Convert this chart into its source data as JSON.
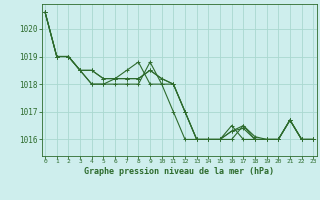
{
  "title": "Graphe pression niveau de la mer (hPa)",
  "background_color": "#ceeeed",
  "grid_color": "#aad8d0",
  "line_color": "#2d6b2d",
  "x_ticks": [
    0,
    1,
    2,
    3,
    4,
    5,
    6,
    7,
    8,
    9,
    10,
    11,
    12,
    13,
    14,
    15,
    16,
    17,
    18,
    19,
    20,
    21,
    22,
    23
  ],
  "y_ticks": [
    1016,
    1017,
    1018,
    1019,
    1020
  ],
  "ylim": [
    1015.4,
    1020.9
  ],
  "xlim": [
    -0.3,
    23.3
  ],
  "curves": [
    {
      "x": [
        0,
        1,
        2,
        3,
        4,
        5,
        6,
        7,
        8,
        9,
        10,
        11,
        12,
        13,
        14,
        15,
        16,
        17,
        18,
        19,
        20,
        21,
        22,
        23
      ],
      "y": [
        1020.6,
        1019.0,
        1019.0,
        1018.5,
        1018.0,
        1018.0,
        1018.0,
        1018.0,
        1018.0,
        1018.8,
        1018.0,
        1018.0,
        1017.0,
        1016.0,
        1016.0,
        1016.0,
        1016.5,
        1016.0,
        1016.0,
        1016.0,
        1016.0,
        1016.7,
        1016.0,
        1016.0
      ]
    },
    {
      "x": [
        0,
        1,
        2,
        3,
        4,
        5,
        6,
        7,
        8,
        9,
        10,
        11,
        12,
        13,
        14,
        15,
        16,
        17,
        18,
        19,
        20,
        21,
        22,
        23
      ],
      "y": [
        1020.6,
        1019.0,
        1019.0,
        1018.5,
        1018.0,
        1018.0,
        1018.2,
        1018.5,
        1018.8,
        1018.0,
        1018.0,
        1017.0,
        1016.0,
        1016.0,
        1016.0,
        1016.0,
        1016.3,
        1016.5,
        1016.0,
        1016.0,
        1016.0,
        1016.7,
        1016.0,
        1016.0
      ]
    },
    {
      "x": [
        0,
        1,
        2,
        3,
        4,
        5,
        6,
        7,
        8,
        9,
        10,
        11,
        12,
        13,
        14,
        15,
        16,
        17,
        18,
        19,
        20,
        21,
        22,
        23
      ],
      "y": [
        1020.6,
        1019.0,
        1019.0,
        1018.5,
        1018.5,
        1018.2,
        1018.2,
        1018.2,
        1018.2,
        1018.5,
        1018.2,
        1018.0,
        1017.0,
        1016.0,
        1016.0,
        1016.0,
        1016.3,
        1016.4,
        1016.0,
        1016.0,
        1016.0,
        1016.7,
        1016.0,
        1016.0
      ]
    },
    {
      "x": [
        0,
        1,
        2,
        3,
        4,
        5,
        6,
        7,
        8,
        9,
        10,
        11,
        12,
        13,
        14,
        15,
        16,
        17,
        18,
        19,
        20,
        21,
        22,
        23
      ],
      "y": [
        1020.6,
        1019.0,
        1019.0,
        1018.5,
        1018.5,
        1018.2,
        1018.2,
        1018.2,
        1018.2,
        1018.5,
        1018.2,
        1018.0,
        1017.0,
        1016.0,
        1016.0,
        1016.0,
        1016.0,
        1016.5,
        1016.1,
        1016.0,
        1016.0,
        1016.7,
        1016.0,
        1016.0
      ]
    }
  ]
}
